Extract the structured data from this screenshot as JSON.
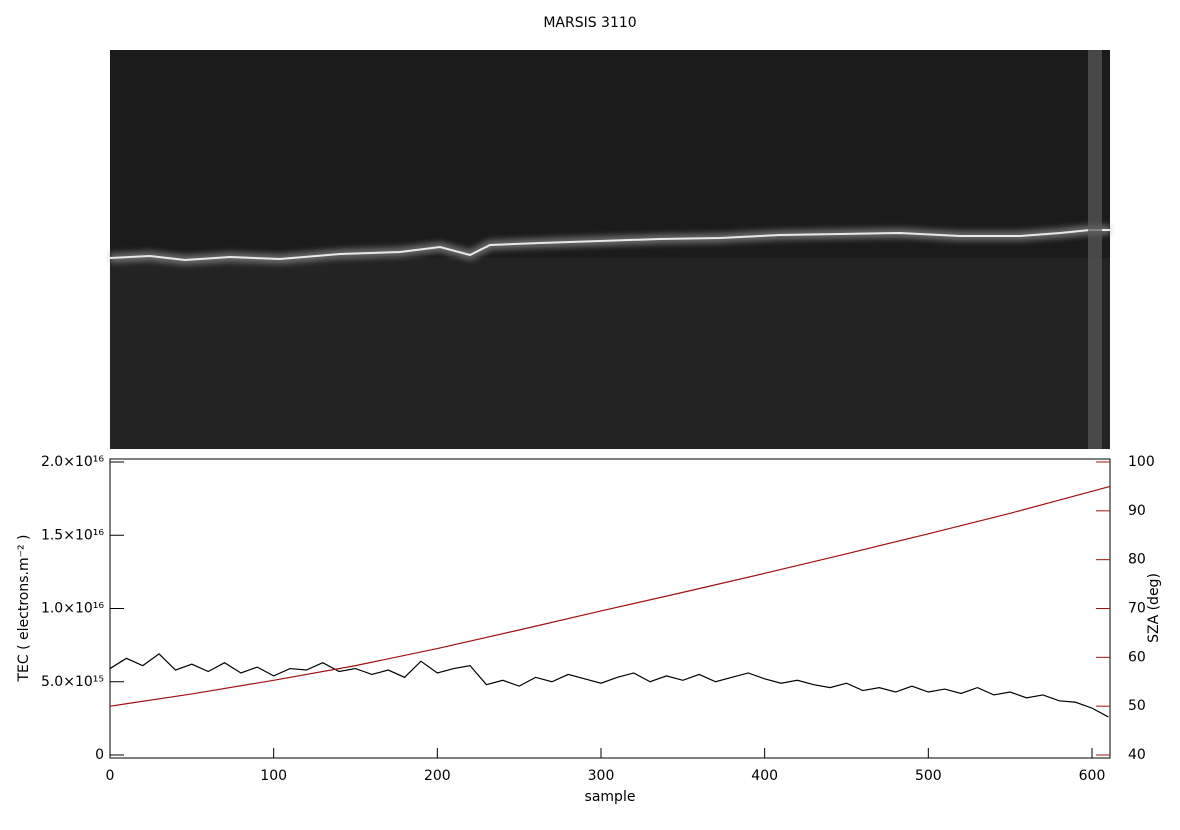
{
  "chart_data": {
    "type": "line",
    "title": "MARSIS 3110",
    "x_label": "sample",
    "y_label": "TEC ( electrons.m⁻² )",
    "y2_label": "SZA (deg)",
    "xlim": [
      0,
      611
    ],
    "xticks": [
      0,
      100,
      200,
      300,
      400,
      500,
      600
    ],
    "ylim": [
      0,
      2e+16
    ],
    "yticks": [
      0,
      {
        "value": 5000000000000000.0,
        "label": "5.0×10¹⁵"
      },
      {
        "value": 1e+16,
        "label": "1.0×10¹⁶"
      },
      {
        "value": 1.5e+16,
        "label": "1.5×10¹⁶"
      },
      {
        "value": 2e+16,
        "label": "2.0×10¹⁶"
      }
    ],
    "y2lim": [
      40,
      100
    ],
    "y2ticks": [
      40,
      50,
      60,
      70,
      80,
      90,
      100
    ],
    "y2color": "#a01010",
    "series": [
      {
        "name": "TEC",
        "color": "#000000",
        "x": [
          0,
          10,
          20,
          30,
          40,
          50,
          60,
          70,
          80,
          90,
          100,
          110,
          120,
          130,
          140,
          150,
          160,
          170,
          180,
          190,
          200,
          210,
          220,
          230,
          240,
          250,
          260,
          270,
          280,
          290,
          300,
          310,
          320,
          330,
          340,
          350,
          360,
          370,
          380,
          390,
          400,
          410,
          420,
          430,
          440,
          450,
          460,
          470,
          480,
          490,
          500,
          510,
          520,
          530,
          540,
          550,
          560,
          570,
          580,
          590,
          600,
          610
        ],
        "values": [
          5900000000000000.0,
          6600000000000000.0,
          6100000000000000.0,
          6900000000000000.0,
          5800000000000000.0,
          6200000000000000.0,
          5700000000000000.0,
          6300000000000000.0,
          5600000000000000.0,
          6000000000000000.0,
          5400000000000000.0,
          5900000000000000.0,
          5800000000000000.0,
          6300000000000000.0,
          5700000000000000.0,
          5900000000000000.0,
          5500000000000000.0,
          5800000000000000.0,
          5300000000000000.0,
          6400000000000000.0,
          5600000000000000.0,
          5900000000000000.0,
          6100000000000000.0,
          4800000000000000.0,
          5100000000000000.0,
          4700000000000000.0,
          5300000000000000.0,
          5000000000000000.0,
          5500000000000000.0,
          5200000000000000.0,
          4900000000000000.0,
          5300000000000000.0,
          5600000000000000.0,
          5000000000000000.0,
          5400000000000000.0,
          5100000000000000.0,
          5500000000000000.0,
          5000000000000000.0,
          5300000000000000.0,
          5600000000000000.0,
          5200000000000000.0,
          4900000000000000.0,
          5100000000000000.0,
          4800000000000000.0,
          4600000000000000.0,
          4900000000000000.0,
          4400000000000000.0,
          4600000000000000.0,
          4300000000000000.0,
          4700000000000000.0,
          4300000000000000.0,
          4500000000000000.0,
          4200000000000000.0,
          4600000000000000.0,
          4100000000000000.0,
          4300000000000000.0,
          3900000000000000.0,
          4100000000000000.0,
          3700000000000000.0,
          3600000000000000.0,
          3200000000000000.0,
          2600000000000000.0
        ]
      },
      {
        "name": "SZA",
        "color": "#a01010",
        "axis": "y2",
        "x": [
          0,
          50,
          100,
          150,
          200,
          250,
          300,
          350,
          400,
          450,
          500,
          550,
          600,
          611
        ],
        "values": [
          50,
          52.5,
          55.3,
          58.3,
          61.8,
          65.6,
          69.5,
          73.3,
          77.2,
          81.2,
          85.3,
          89.5,
          94,
          95
        ]
      }
    ]
  }
}
